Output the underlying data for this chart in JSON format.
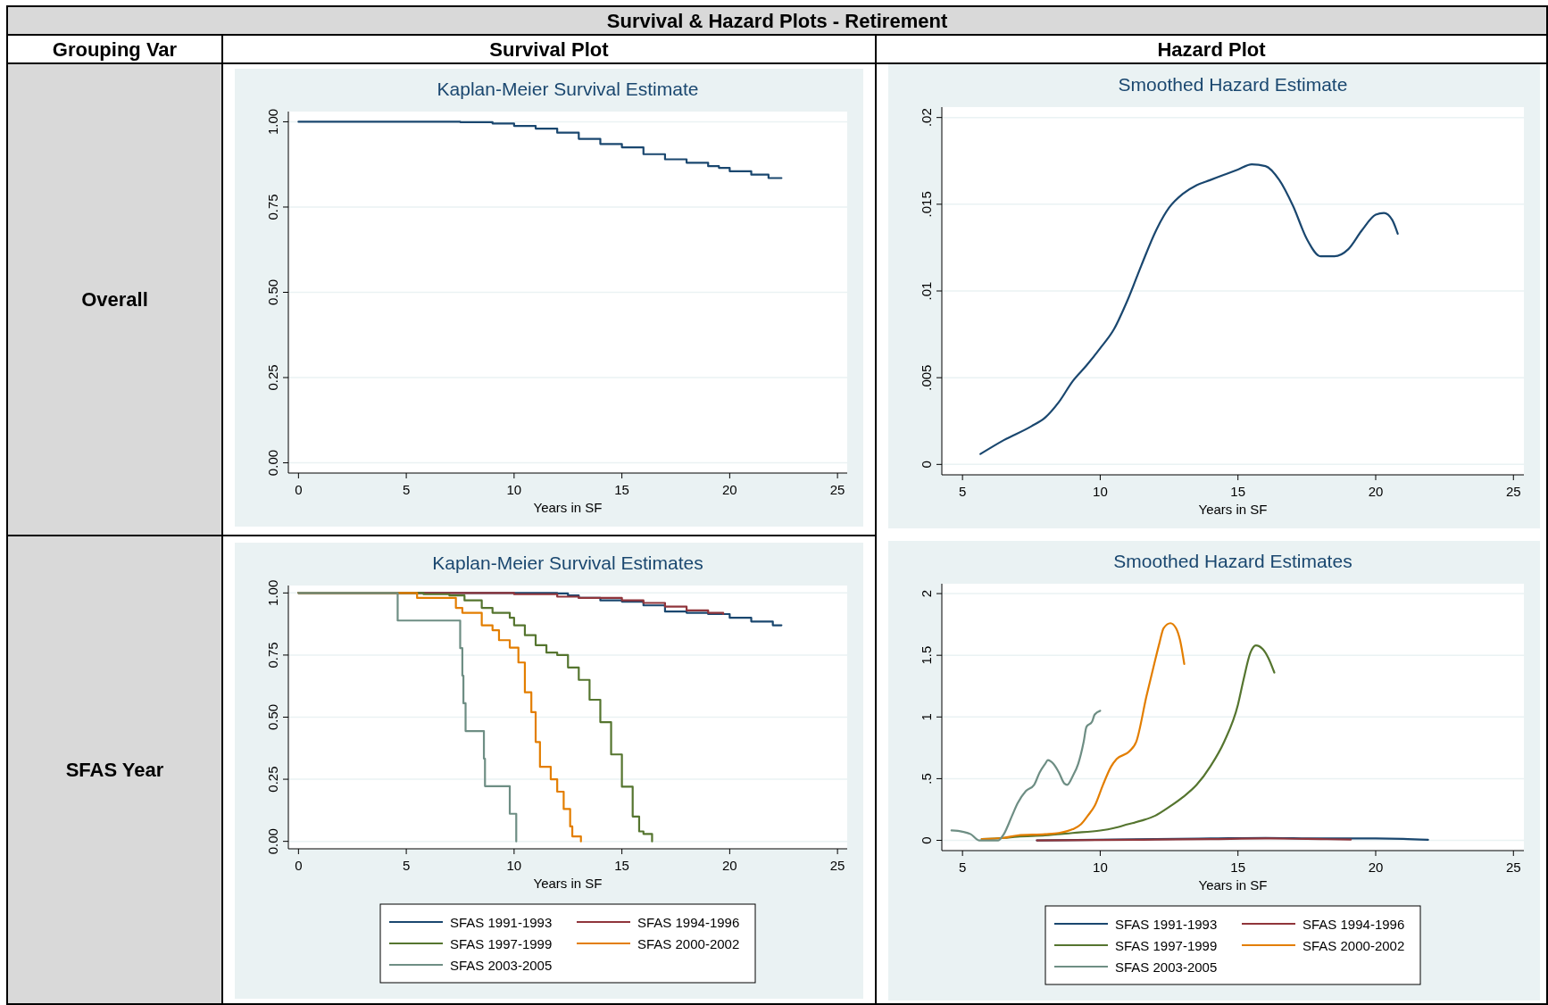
{
  "chart_data": [
    {
      "type": "other",
      "title": "Survival & Hazard Plots - Retirement",
      "annotations": [
        "Grouping Var",
        "Survival Plot",
        "Hazard Plot",
        "Overall",
        "SFAS Year"
      ]
    },
    {
      "type": "step",
      "title": "Kaplan-Meier Survival Estimate",
      "xlabel": "Years in SF",
      "xlim": [
        -0.47,
        25.45
      ],
      "ylim": [
        -0.03,
        1.03
      ],
      "xticks": [
        0,
        5,
        10,
        15,
        20,
        25
      ],
      "yticks": [
        {
          "value": 0,
          "label": "0.00"
        },
        {
          "value": 0.25,
          "label": "0.25"
        },
        {
          "value": 0.5,
          "label": "0.50"
        },
        {
          "value": 0.75,
          "label": "0.75"
        },
        {
          "value": 1,
          "label": "1.00"
        }
      ],
      "grid": "y",
      "legend": false,
      "series": [
        {
          "color": "#1a476f",
          "x": [
            0,
            5,
            7.5,
            9,
            10,
            11,
            12,
            13,
            14,
            15,
            16,
            17,
            18,
            19,
            19.5,
            20,
            21,
            21.8,
            22.4
          ],
          "values": [
            1,
            1,
            0.999,
            0.995,
            0.988,
            0.98,
            0.968,
            0.95,
            0.935,
            0.925,
            0.905,
            0.89,
            0.88,
            0.87,
            0.865,
            0.855,
            0.845,
            0.835,
            0.835
          ]
        }
      ]
    },
    {
      "type": "line",
      "title": "Smoothed Hazard Estimate",
      "xlabel": "Years in SF",
      "xlim": [
        4.25,
        25.38
      ],
      "ylim": [
        -0.0006,
        0.0206
      ],
      "xticks": [
        5,
        10,
        15,
        20,
        25
      ],
      "yticks": [
        0,
        {
          "value": 0.005,
          "label": ".005"
        },
        {
          "value": 0.01,
          "label": ".01"
        },
        {
          "value": 0.015,
          "label": ".015"
        },
        {
          "value": 0.02,
          "label": ".02"
        }
      ],
      "grid": "y",
      "legend": false,
      "series": [
        {
          "color": "#1a476f",
          "x": [
            5.65,
            6.5,
            7.5,
            8,
            8.5,
            9,
            9.5,
            10,
            10.5,
            11,
            11.5,
            12,
            12.5,
            13,
            13.5,
            14,
            14.5,
            15,
            15.5,
            16,
            16.5,
            17,
            17.5,
            18,
            18.5,
            19,
            19.5,
            20,
            20.3,
            20.6,
            20.8
          ],
          "values": [
            0.0006,
            0.0014,
            0.0022,
            0.0027,
            0.0036,
            0.0048,
            0.0057,
            0.0067,
            0.0078,
            0.0095,
            0.0115,
            0.0134,
            0.0148,
            0.0156,
            0.0161,
            0.0164,
            0.0167,
            0.017,
            0.0173,
            0.0172,
            0.0164,
            0.0149,
            0.013,
            0.012,
            0.012,
            0.0124,
            0.0135,
            0.0144,
            0.0145,
            0.0141,
            0.0133
          ]
        }
      ]
    },
    {
      "type": "step",
      "title": "Kaplan-Meier Survival Estimates",
      "xlabel": "Years in SF",
      "xlim": [
        -0.47,
        25.45
      ],
      "ylim": [
        -0.03,
        1.03
      ],
      "xticks": [
        0,
        5,
        10,
        15,
        20,
        25
      ],
      "yticks": [
        {
          "value": 0,
          "label": "0.00"
        },
        {
          "value": 0.25,
          "label": "0.25"
        },
        {
          "value": 0.5,
          "label": "0.50"
        },
        {
          "value": 0.75,
          "label": "0.75"
        },
        {
          "value": 1,
          "label": "1.00"
        }
      ],
      "grid": "y",
      "legend": "bottom",
      "series": [
        {
          "name": "SFAS 1991-1993",
          "color": "#1a476f",
          "x": [
            0,
            10,
            12,
            12.5,
            13,
            14,
            15,
            16,
            17,
            18,
            19,
            20,
            21,
            22,
            22.4
          ],
          "values": [
            1,
            1,
            0.998,
            0.99,
            0.98,
            0.97,
            0.965,
            0.95,
            0.925,
            0.92,
            0.915,
            0.9,
            0.885,
            0.87,
            0.87
          ]
        },
        {
          "name": "SFAS 1994-1996",
          "color": "#90353b",
          "x": [
            0,
            8,
            10,
            12,
            13,
            15,
            16,
            17,
            18,
            19,
            19.7
          ],
          "values": [
            1,
            1,
            0.995,
            0.985,
            0.98,
            0.97,
            0.96,
            0.945,
            0.93,
            0.92,
            0.915
          ]
        },
        {
          "name": "SFAS 1997-1999",
          "color": "#55752f",
          "x": [
            0,
            5.8,
            7,
            7.7,
            8.5,
            9,
            9.8,
            10,
            10.5,
            11,
            11.5,
            12,
            12.5,
            13,
            13.5,
            14,
            14.5,
            15,
            15.5,
            15.8,
            16,
            16.4
          ],
          "values": [
            1,
            0.995,
            0.99,
            0.97,
            0.94,
            0.92,
            0.9,
            0.87,
            0.83,
            0.79,
            0.76,
            0.75,
            0.7,
            0.65,
            0.57,
            0.48,
            0.35,
            0.22,
            0.1,
            0.04,
            0.03,
            0
          ]
        },
        {
          "name": "SFAS 2000-2002",
          "color": "#e37e00",
          "x": [
            0,
            5.5,
            7,
            7.3,
            7.6,
            8.5,
            9,
            9.3,
            9.8,
            10.2,
            10.5,
            10.8,
            11,
            11.2,
            11.7,
            12,
            12.3,
            12.6,
            12.7,
            13.1
          ],
          "values": [
            1,
            0.98,
            0.98,
            0.94,
            0.92,
            0.87,
            0.85,
            0.81,
            0.78,
            0.72,
            0.6,
            0.52,
            0.4,
            0.3,
            0.25,
            0.2,
            0.13,
            0.06,
            0.02,
            0
          ]
        },
        {
          "name": "SFAS 2003-2005",
          "color": "#6e8e84",
          "x": [
            0,
            4.6,
            7.5,
            7.6,
            7.65,
            7.75,
            8.6,
            8.65,
            9.8,
            10.1
          ],
          "values": [
            1,
            0.889,
            0.778,
            0.667,
            0.556,
            0.444,
            0.333,
            0.222,
            0.111,
            0
          ]
        }
      ]
    },
    {
      "type": "line",
      "title": "Smoothed Hazard Estimates",
      "xlabel": "Years in SF",
      "xlim": [
        4.25,
        25.38
      ],
      "ylim": [
        -0.083,
        2.08
      ],
      "xticks": [
        5,
        10,
        15,
        20,
        25
      ],
      "yticks": [
        0,
        {
          "value": 0.5,
          "label": ".5"
        },
        1,
        1.5,
        2
      ],
      "grid": "y",
      "legend": "bottom",
      "series": [
        {
          "name": "SFAS 1991-1993",
          "color": "#1a476f",
          "x": [
            7.7,
            10,
            12,
            14,
            16,
            18,
            20,
            21,
            21.9
          ],
          "values": [
            0,
            null,
            0.01,
            0.015,
            0.02,
            0.015,
            0.015,
            0.012,
            0.005
          ]
        },
        {
          "name": "SFAS 1994-1996",
          "color": "#90353b",
          "x": [
            7.7,
            10,
            12,
            14,
            16,
            17,
            18,
            19.1
          ],
          "values": [
            0,
            0.003,
            0.006,
            0.01,
            0.015,
            0.013,
            0.01,
            0.007
          ]
        },
        {
          "name": "SFAS 1997-1999",
          "color": "#55752f",
          "x": [
            5.7,
            6.5,
            7,
            8,
            9,
            10,
            10.5,
            11,
            11.5,
            12,
            12.5,
            13,
            13.5,
            14,
            14.5,
            15,
            15.2,
            15.45,
            15.65,
            15.9,
            16.1,
            16.32
          ],
          "values": [
            0.01,
            0.02,
            0.03,
            0.04,
            0.06,
            0.08,
            0.1,
            0.13,
            0.16,
            0.2,
            0.27,
            0.35,
            0.45,
            0.6,
            0.8,
            1.1,
            1.3,
            1.52,
            1.58,
            1.55,
            1.48,
            1.36
          ]
        },
        {
          "name": "SFAS 2000-2002",
          "color": "#e37e00",
          "x": [
            5.7,
            6.5,
            7,
            8,
            8.5,
            9,
            9.3,
            9.55,
            9.8,
            10.1,
            10.4,
            10.6,
            11.05,
            11.31,
            11.68,
            11.95,
            12.15,
            12.3,
            12.55,
            12.75,
            12.9,
            13.05
          ],
          "values": [
            0.01,
            0.02,
            0.04,
            0.05,
            0.06,
            0.09,
            0.13,
            0.2,
            0.28,
            0.45,
            0.6,
            0.66,
            0.72,
            0.8,
            1.17,
            1.42,
            1.6,
            1.72,
            1.76,
            1.72,
            1.62,
            1.43
          ]
        },
        {
          "name": "SFAS 2003-2005",
          "color": "#6e8e84",
          "x": [
            4.6,
            5,
            5.3,
            5.6,
            6,
            6.3,
            6.5,
            6.8,
            7,
            7.3,
            7.6,
            7.8,
            8,
            8.1,
            8.3,
            8.5,
            8.7,
            8.8,
            9,
            9.2,
            9.4,
            9.5,
            9.7,
            9.8,
            10
          ],
          "values": [
            0.08,
            0.07,
            0.05,
            0,
            0,
            0,
            0.05,
            0.2,
            0.3,
            0.4,
            0.45,
            0.55,
            0.62,
            0.65,
            0.62,
            0.55,
            0.46,
            0.45,
            0.52,
            0.62,
            0.8,
            0.92,
            0.96,
            1.02,
            1.05
          ]
        }
      ]
    }
  ]
}
